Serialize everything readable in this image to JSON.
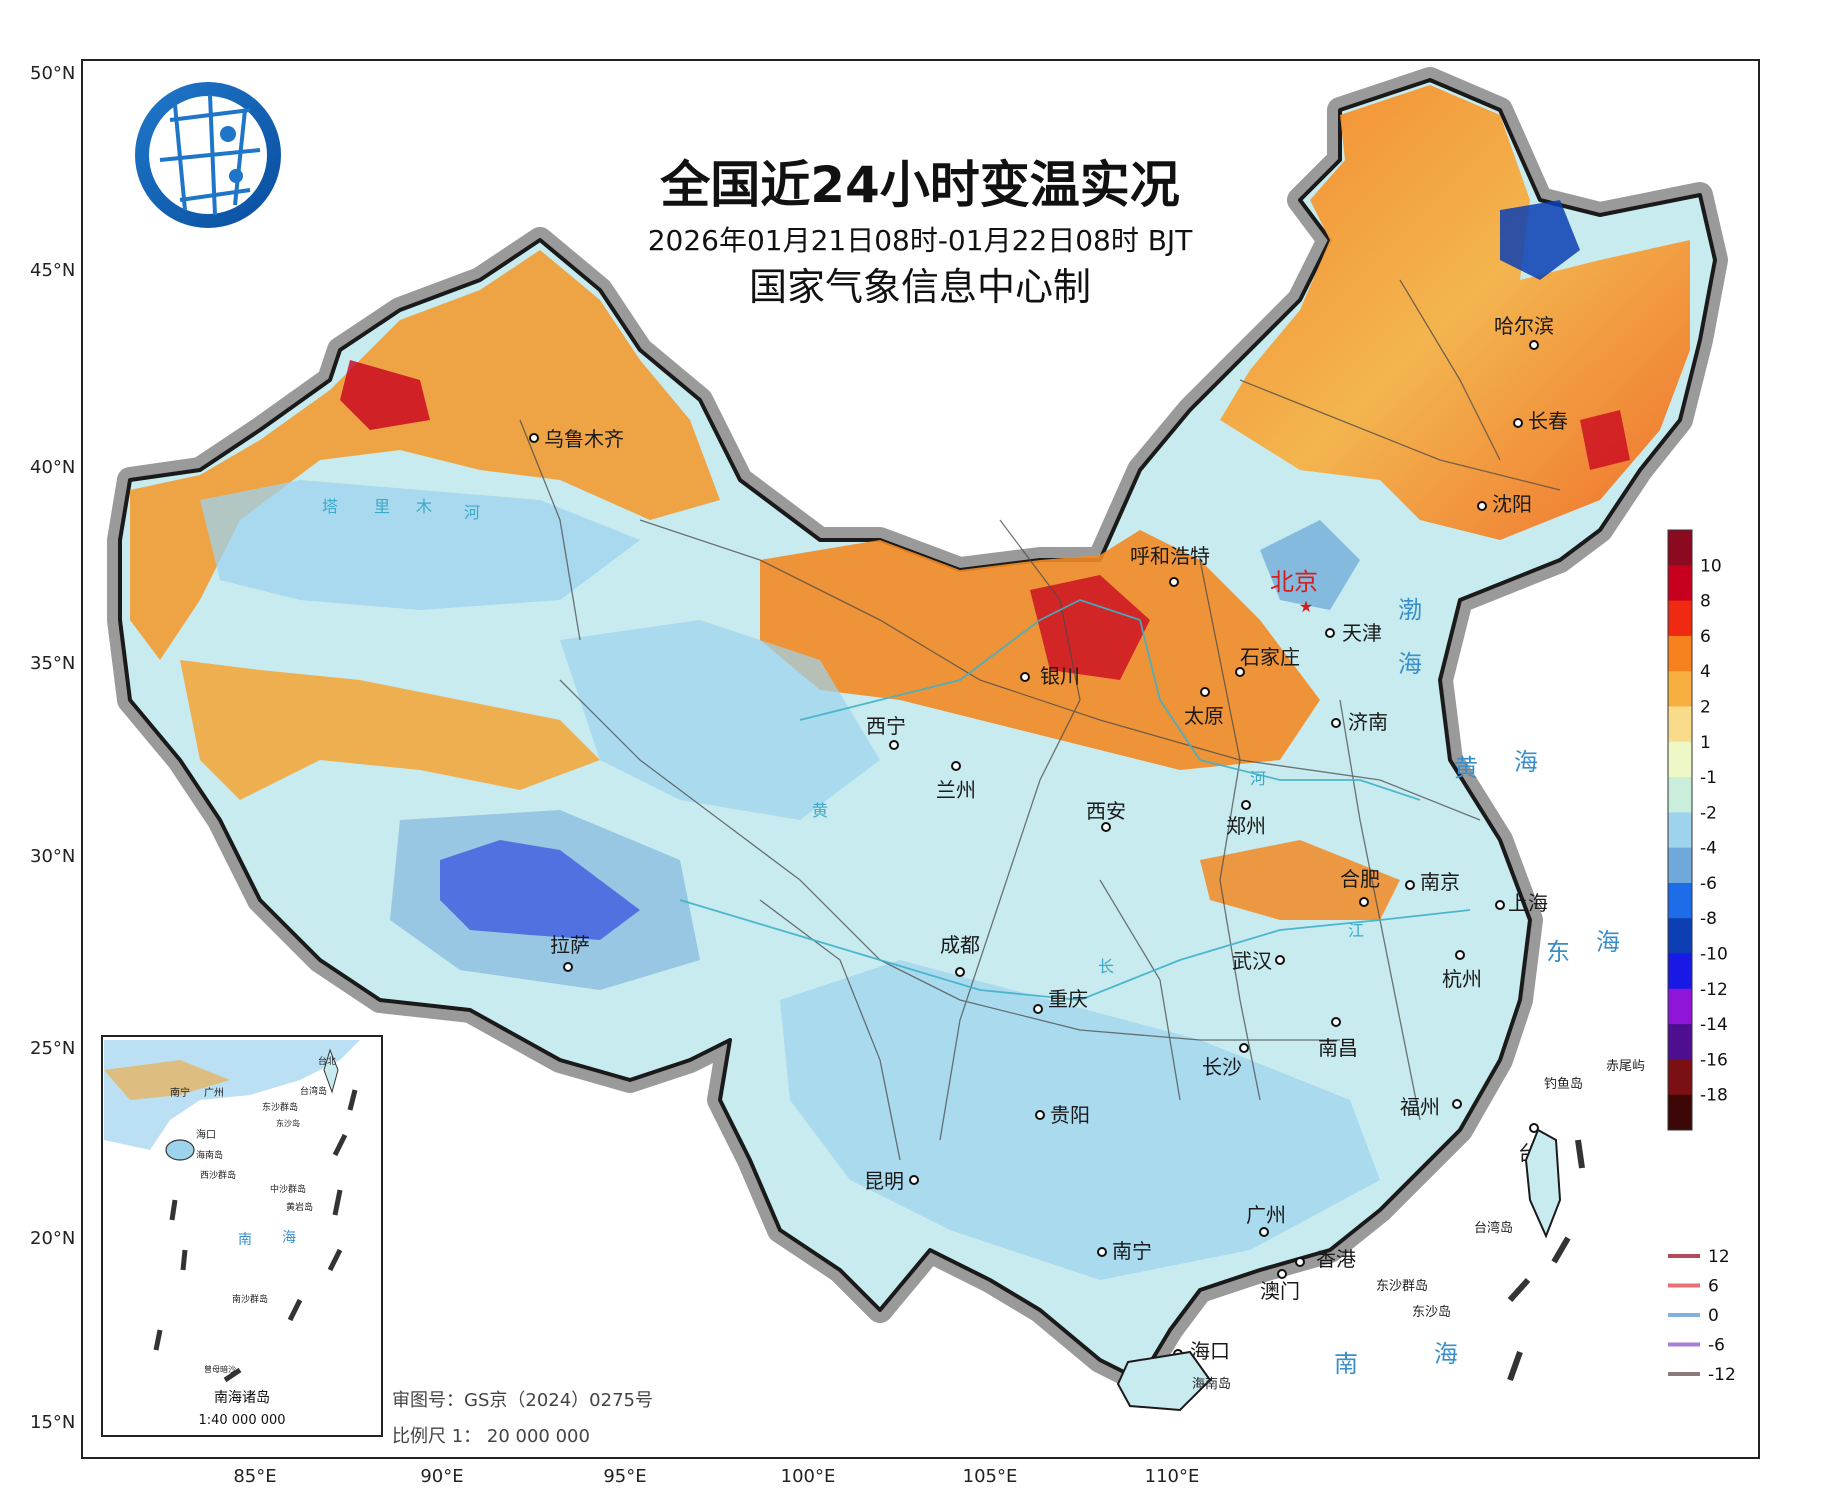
{
  "title": "全国近24小时变温实况",
  "subtitle": "2026年01月21日08时-01月22日08时 BJT",
  "producer": "国家气象信息中心制",
  "review_number": "审图号：GS京（2024）0275号",
  "scale": "比例尺 1： 20 000 000",
  "axes": {
    "lat_labels": [
      "50°N",
      "45°N",
      "40°N",
      "35°N",
      "30°N",
      "25°N",
      "20°N",
      "15°N"
    ],
    "lon_labels": [
      "85°E",
      "90°E",
      "95°E",
      "100°E",
      "105°E",
      "110°E"
    ]
  },
  "color_legend": {
    "labels": [
      "10",
      "8",
      "6",
      "4",
      "2",
      "1",
      "-1",
      "-2",
      "-4",
      "-6",
      "-8",
      "-10",
      "-12",
      "-14",
      "-16",
      "-18"
    ],
    "colors": [
      "#8b0a1f",
      "#c8001f",
      "#f02a12",
      "#f7811f",
      "#f7b040",
      "#f8dc8c",
      "#eef8c6",
      "#c9eedb",
      "#9ed3ee",
      "#6fa9d9",
      "#1e6de8",
      "#0b3fb3",
      "#1919e6",
      "#8f16d9",
      "#4d0f8f",
      "#7a0f14",
      "#3d0707"
    ]
  },
  "line_legend": [
    {
      "label": "12",
      "color": "#b24c5c"
    },
    {
      "label": "6",
      "color": "#ea6f73"
    },
    {
      "label": "0",
      "color": "#7fb0e0"
    },
    {
      "label": "-6",
      "color": "#a77fd6"
    },
    {
      "label": "-12",
      "color": "#8a7a7a"
    }
  ],
  "cities": [
    {
      "name": "乌鲁木齐"
    },
    {
      "name": "哈尔滨"
    },
    {
      "name": "长春"
    },
    {
      "name": "沈阳"
    },
    {
      "name": "呼和浩特"
    },
    {
      "name": "北京"
    },
    {
      "name": "天津"
    },
    {
      "name": "石家庄"
    },
    {
      "name": "银川"
    },
    {
      "name": "太原"
    },
    {
      "name": "济南"
    },
    {
      "name": "西宁"
    },
    {
      "name": "兰州"
    },
    {
      "name": "西安"
    },
    {
      "name": "郑州"
    },
    {
      "name": "合肥"
    },
    {
      "name": "南京"
    },
    {
      "name": "上海"
    },
    {
      "name": "拉萨"
    },
    {
      "name": "成都"
    },
    {
      "name": "武汉"
    },
    {
      "name": "杭州"
    },
    {
      "name": "重庆"
    },
    {
      "name": "南昌"
    },
    {
      "name": "长沙"
    },
    {
      "name": "福州"
    },
    {
      "name": "贵阳"
    },
    {
      "name": "台北"
    },
    {
      "name": "昆明"
    },
    {
      "name": "广州"
    },
    {
      "name": "南宁"
    },
    {
      "name": "香港"
    },
    {
      "name": "澳门"
    },
    {
      "name": "海口"
    }
  ],
  "seas": [
    "渤",
    "海",
    "黄",
    "海",
    "东",
    "海",
    "南",
    "海"
  ],
  "rivers": [
    "塔",
    "里",
    "木",
    "河",
    "黄",
    "河",
    "长",
    "江"
  ],
  "islands": [
    "钓鱼岛",
    "赤尾屿",
    "台湾岛",
    "东沙群岛",
    "东沙岛",
    "海南岛"
  ],
  "inset": {
    "title": "南海诸岛",
    "scale": "1:40 000 000",
    "labels": [
      "南宁",
      "广州",
      "台湾岛",
      "东沙群岛",
      "海口",
      "海南岛",
      "西沙群岛",
      "中沙群岛",
      "黄岩岛",
      "南",
      "海",
      "南沙群岛",
      "曾母暗沙",
      "台北",
      "东沙岛"
    ]
  }
}
